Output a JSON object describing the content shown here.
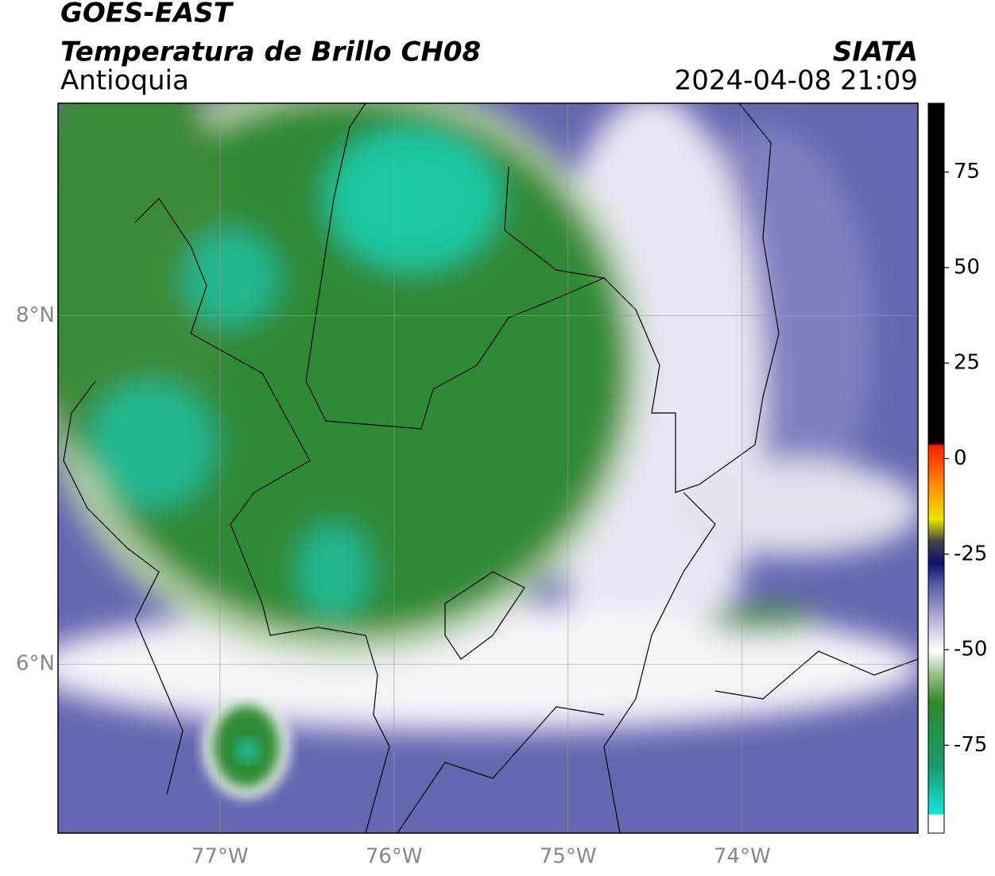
{
  "header": {
    "line1": "GOES-EAST",
    "line2": "Temperatura de Brillo CH08",
    "region": "Antioquia",
    "source": "SIATA",
    "datetime": "2024-04-08 21:09"
  },
  "map": {
    "lonlim": [
      -77.93,
      -72.99
    ],
    "latlim": [
      5.03,
      9.22
    ],
    "lonticks": [
      {
        "value": -77,
        "label": "77°W"
      },
      {
        "value": -76,
        "label": "76°W"
      },
      {
        "value": -75,
        "label": "75°W"
      },
      {
        "value": -74,
        "label": "74°W"
      }
    ],
    "latticks": [
      {
        "value": 8,
        "label": "8°N"
      },
      {
        "value": 6,
        "label": "6°N"
      }
    ]
  },
  "colorbar": {
    "lim": [
      -98,
      93
    ],
    "ticks": [
      75,
      50,
      25,
      0,
      -25,
      -50,
      -75
    ]
  }
}
